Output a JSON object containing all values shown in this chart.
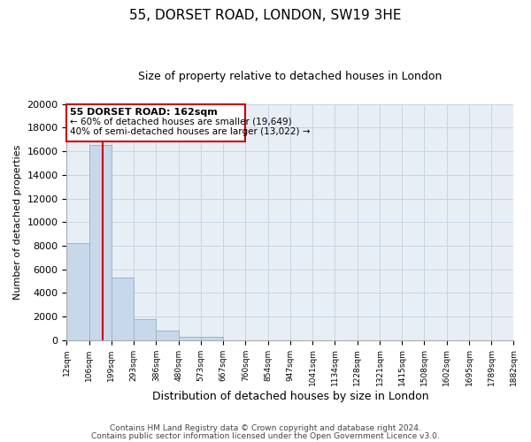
{
  "title": "55, DORSET ROAD, LONDON, SW19 3HE",
  "subtitle": "Size of property relative to detached houses in London",
  "xlabel": "Distribution of detached houses by size in London",
  "ylabel": "Number of detached properties",
  "bar_color": "#c8d8eb",
  "bar_edge_color": "#9ab4cc",
  "property_line_color": "#cc0000",
  "property_value": 162,
  "annotation_title": "55 DORSET ROAD: 162sqm",
  "annotation_line1": "← 60% of detached houses are smaller (19,649)",
  "annotation_line2": "40% of semi-detached houses are larger (13,022) →",
  "footnote1": "Contains HM Land Registry data © Crown copyright and database right 2024.",
  "footnote2": "Contains public sector information licensed under the Open Government Licence v3.0.",
  "bin_edges": [
    12,
    106,
    199,
    293,
    386,
    480,
    573,
    667,
    760,
    854,
    947,
    1041,
    1134,
    1228,
    1321,
    1415,
    1508,
    1602,
    1695,
    1789,
    1882
  ],
  "bin_counts": [
    8200,
    16500,
    5300,
    1750,
    800,
    300,
    250,
    0,
    0,
    0,
    0,
    0,
    0,
    0,
    0,
    0,
    0,
    0,
    0,
    0
  ],
  "ylim": [
    0,
    20000
  ],
  "yticks": [
    0,
    2000,
    4000,
    6000,
    8000,
    10000,
    12000,
    14000,
    16000,
    18000,
    20000
  ],
  "background_color": "#ffffff",
  "grid_color": "#c8d4e4"
}
